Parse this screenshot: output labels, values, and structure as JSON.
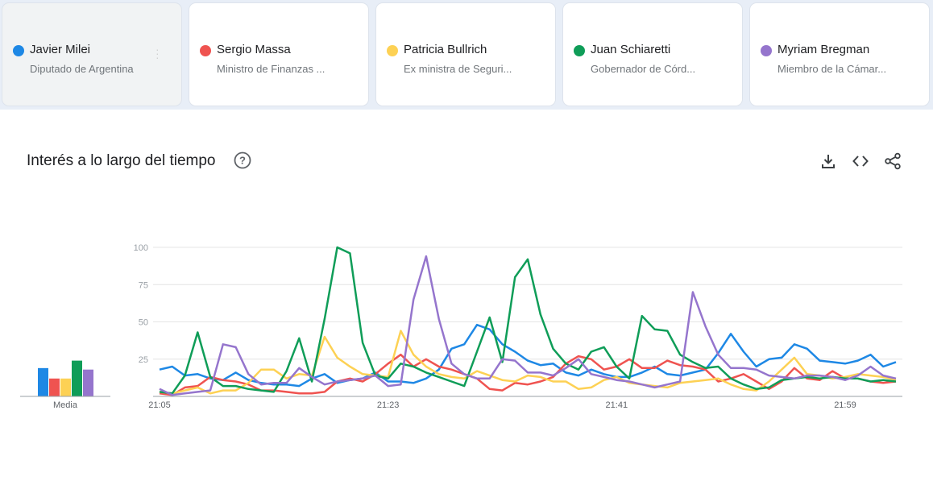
{
  "entities": [
    {
      "name": "Javier Milei",
      "subtitle": "Diputado de Argentina",
      "color": "#1e88e5",
      "selected": true
    },
    {
      "name": "Sergio Massa",
      "subtitle": "Ministro de Finanzas ...",
      "color": "#ef5350"
    },
    {
      "name": "Patricia Bullrich",
      "subtitle": "Ex ministra de Seguri...",
      "color": "#fdd154"
    },
    {
      "name": "Juan Schiaretti",
      "subtitle": "Gobernador de Córd...",
      "color": "#0f9d58"
    },
    {
      "name": "Myriam Bregman",
      "subtitle": "Miembro de la Cámar...",
      "color": "#9575cd"
    }
  ],
  "section": {
    "title": "Interés a lo largo del tiempo",
    "icons": [
      "help-circle-icon",
      "download-icon",
      "embed-code-icon",
      "share-icon"
    ]
  },
  "chart_data": {
    "type": "line",
    "x_tick_labels": [
      "21:05",
      "21:23",
      "21:41",
      "21:59"
    ],
    "y_ticks": [
      25,
      50,
      75,
      100
    ],
    "ylim": [
      0,
      100
    ],
    "grid": true,
    "average_label": "Media",
    "averages": [
      19,
      12,
      12,
      24,
      18
    ],
    "series": [
      {
        "name": "Javier Milei",
        "color": "#1e88e5",
        "values": [
          18,
          20,
          14,
          15,
          12,
          11,
          16,
          11,
          9,
          8,
          8,
          7,
          12,
          15,
          9,
          11,
          12,
          16,
          10,
          10,
          9,
          12,
          18,
          32,
          35,
          48,
          45,
          35,
          30,
          24,
          21,
          22,
          16,
          14,
          18,
          15,
          13,
          13,
          16,
          20,
          15,
          14,
          16,
          18,
          29,
          42,
          30,
          20,
          25,
          26,
          35,
          32,
          24,
          23,
          22,
          24,
          28,
          20,
          23
        ]
      },
      {
        "name": "Sergio Massa",
        "color": "#ef5350",
        "values": [
          2,
          1,
          6,
          7,
          13,
          11,
          10,
          8,
          4,
          4,
          3,
          2,
          2,
          3,
          10,
          12,
          10,
          15,
          22,
          28,
          20,
          25,
          20,
          18,
          15,
          12,
          5,
          4,
          9,
          8,
          10,
          13,
          22,
          27,
          25,
          18,
          20,
          25,
          19,
          19,
          24,
          21,
          20,
          18,
          10,
          12,
          15,
          10,
          5,
          10,
          19,
          12,
          11,
          17,
          12,
          12,
          10,
          9,
          10
        ]
      },
      {
        "name": "Patricia Bullrich",
        "color": "#fdd154",
        "values": [
          3,
          2,
          4,
          6,
          2,
          4,
          4,
          9,
          18,
          18,
          12,
          15,
          14,
          40,
          26,
          20,
          15,
          14,
          13,
          44,
          28,
          20,
          15,
          13,
          12,
          17,
          14,
          11,
          10,
          14,
          13,
          10,
          10,
          5,
          6,
          11,
          13,
          9,
          8,
          7,
          6,
          9,
          10,
          11,
          12,
          8,
          5,
          4,
          10,
          18,
          26,
          15,
          14,
          12,
          13,
          15,
          14,
          13,
          11
        ]
      },
      {
        "name": "Juan Schiaretti",
        "color": "#0f9d58",
        "values": [
          3,
          2,
          14,
          43,
          13,
          7,
          7,
          5,
          4,
          3,
          17,
          39,
          10,
          52,
          100,
          96,
          36,
          14,
          12,
          22,
          20,
          16,
          13,
          10,
          7,
          30,
          53,
          23,
          80,
          92,
          55,
          32,
          22,
          18,
          30,
          33,
          20,
          12,
          54,
          45,
          44,
          28,
          23,
          19,
          20,
          12,
          8,
          5,
          6,
          11,
          12,
          13,
          12,
          13,
          12,
          12,
          10,
          11,
          10
        ]
      },
      {
        "name": "Myriam Bregman",
        "color": "#9575cd",
        "values": [
          5,
          1,
          2,
          3,
          4,
          35,
          33,
          15,
          8,
          9,
          9,
          19,
          13,
          8,
          10,
          11,
          12,
          14,
          7,
          8,
          65,
          94,
          52,
          22,
          15,
          12,
          12,
          25,
          24,
          16,
          16,
          14,
          19,
          25,
          15,
          13,
          11,
          10,
          8,
          6,
          8,
          10,
          70,
          47,
          28,
          19,
          19,
          18,
          14,
          13,
          12,
          14,
          14,
          13,
          11,
          14,
          20,
          14,
          12
        ]
      }
    ]
  }
}
